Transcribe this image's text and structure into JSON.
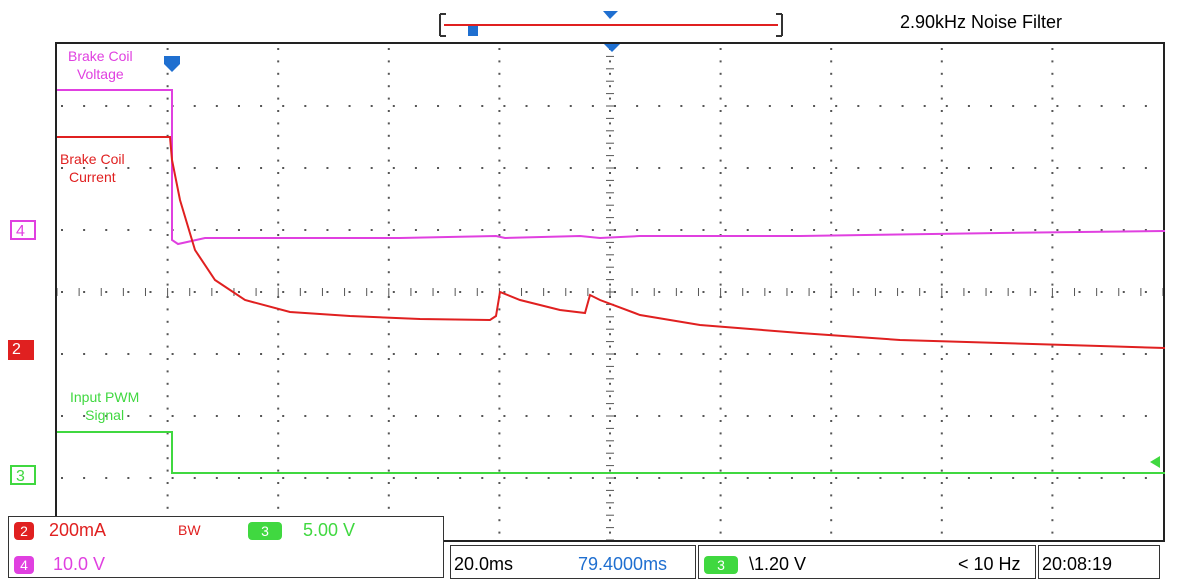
{
  "header": {
    "noise_filter": "2.90kHz  Noise Filter"
  },
  "channels": {
    "ch4": {
      "id": "4",
      "color": "#e040e0",
      "label_line1": "Brake Coil",
      "label_line2": "Voltage",
      "scale": "10.0 V"
    },
    "ch2": {
      "id": "2",
      "color": "#e02020",
      "label_line1": "Brake Coil",
      "label_line2": "Current",
      "scale": "200mA",
      "bw": "BW"
    },
    "ch3": {
      "id": "3",
      "color": "#40d840",
      "label_line1": "Input PWM",
      "label_line2": "Signal",
      "scale": "5.00 V"
    }
  },
  "timebase": {
    "per_div": "20.0ms",
    "position": "79.4000ms"
  },
  "trigger": {
    "channel": "3",
    "slope_level": "\\1.20 V",
    "freq": "< 10 Hz"
  },
  "clock": "20:08:19",
  "colors": {
    "grid": "#444444",
    "ch4": "#e040e0",
    "ch2": "#e02020",
    "ch3": "#40d840",
    "trigger": "#1f6fd0"
  }
}
